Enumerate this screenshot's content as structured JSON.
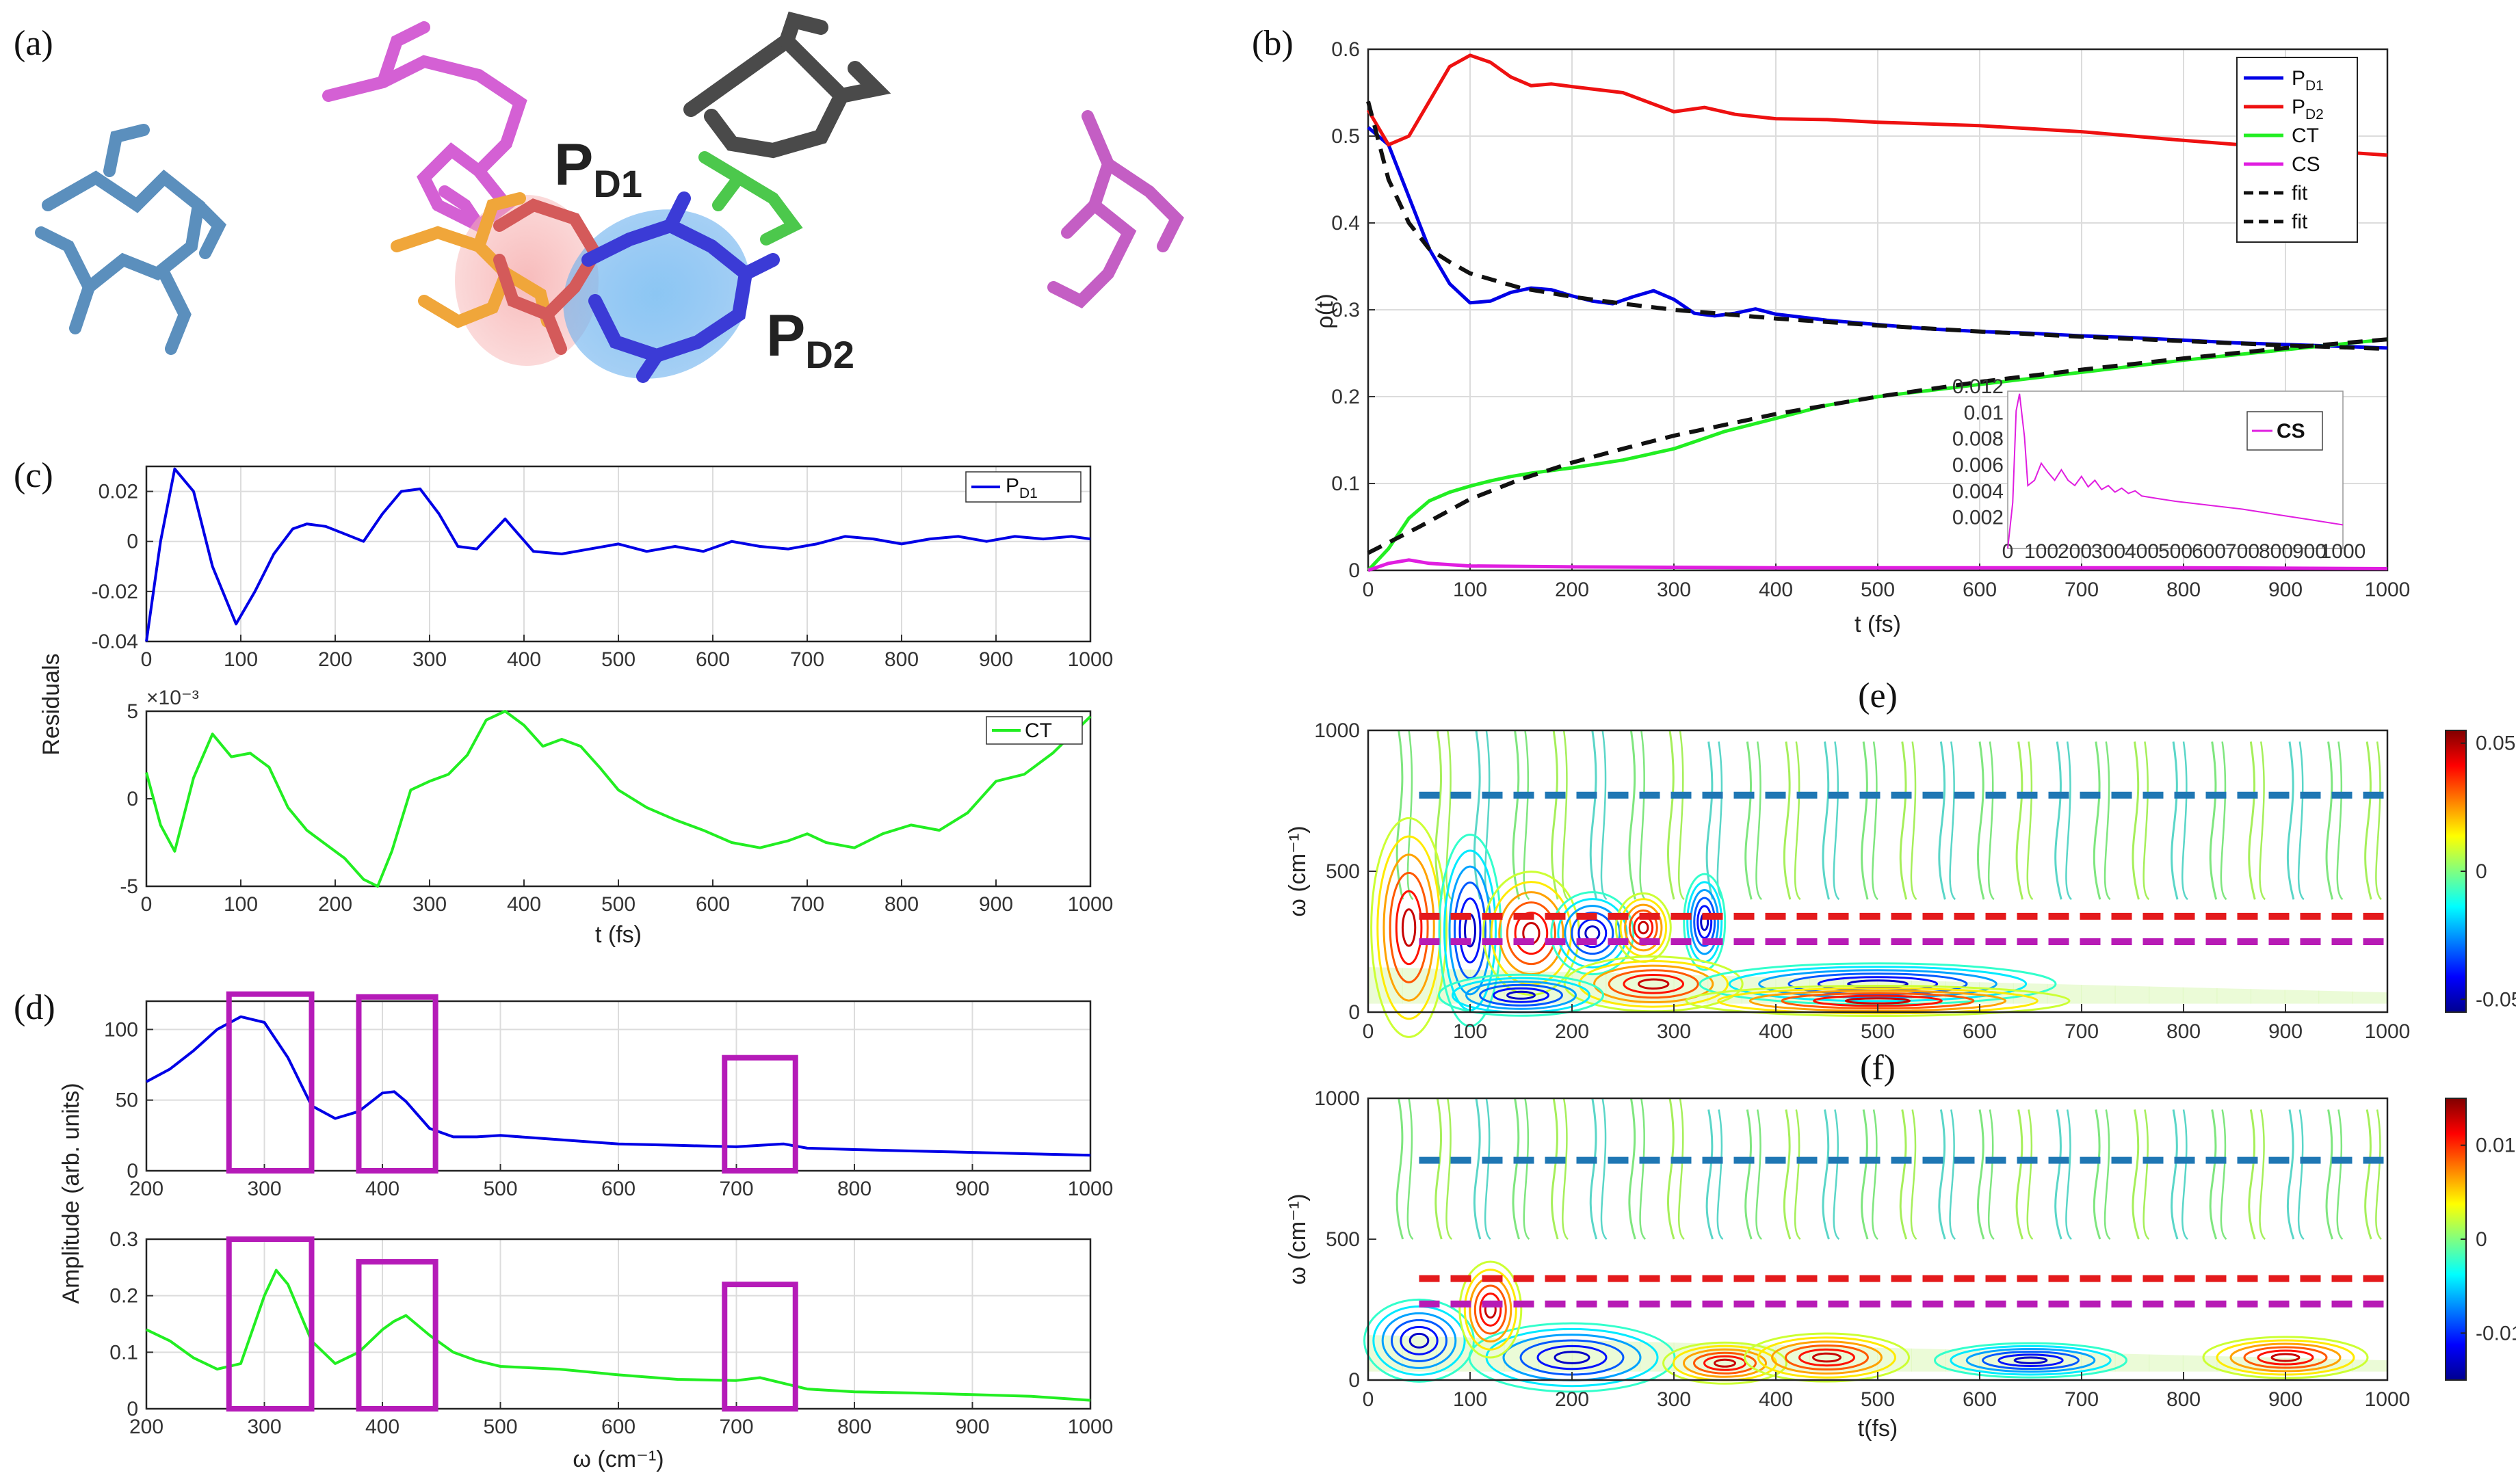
{
  "panels": {
    "a": {
      "label": "(a)",
      "molecule_labels": {
        "pd1_main": "P",
        "pd1_sub": "D1",
        "pd2_main": "P",
        "pd2_sub": "D2"
      }
    },
    "b": {
      "label": "(b)"
    },
    "c": {
      "label": "(c)",
      "shared_ylabel": "Residuals"
    },
    "d": {
      "label": "(d)",
      "shared_ylabel": "Amplitude (arb. units)"
    },
    "e": {
      "label": "(e)"
    },
    "f": {
      "label": "(f)"
    }
  },
  "colors": {
    "pd1": "#0000e6",
    "pd2": "#ee1111",
    "ct": "#22ee22",
    "cs": "#e01ee0",
    "fit": "#111111",
    "box": "#b51bb8",
    "dash_blue": "#1f77b4",
    "dash_red": "#e41a1c",
    "dash_purple": "#b71bb5"
  },
  "chart_data": [
    {
      "id": "b",
      "type": "line",
      "xlabel": "t (fs)",
      "ylabel": "ρ(t)",
      "xlim": [
        0,
        1000
      ],
      "ylim": [
        0,
        0.6
      ],
      "xticks": [
        "0",
        "100",
        "200",
        "300",
        "400",
        "500",
        "600",
        "700",
        "800",
        "900",
        "1000"
      ],
      "yticks": [
        "0",
        "0.1",
        "0.2",
        "0.3",
        "0.4",
        "0.5",
        "0.6"
      ],
      "legend": [
        "P_D1",
        "P_D2",
        "CT",
        "CS",
        "fit",
        "fit"
      ],
      "series": [
        {
          "name": "P_D1",
          "x": [
            0,
            20,
            40,
            60,
            80,
            100,
            120,
            140,
            160,
            180,
            200,
            220,
            240,
            260,
            280,
            300,
            320,
            340,
            360,
            380,
            400,
            450,
            500,
            550,
            600,
            650,
            700,
            750,
            800,
            850,
            900,
            950,
            1000
          ],
          "values": [
            0.51,
            0.49,
            0.43,
            0.37,
            0.33,
            0.308,
            0.31,
            0.32,
            0.325,
            0.323,
            0.316,
            0.31,
            0.307,
            0.315,
            0.322,
            0.312,
            0.296,
            0.293,
            0.296,
            0.301,
            0.295,
            0.288,
            0.283,
            0.278,
            0.275,
            0.273,
            0.27,
            0.268,
            0.265,
            0.262,
            0.26,
            0.258,
            0.256
          ]
        },
        {
          "name": "P_D2",
          "x": [
            0,
            20,
            40,
            60,
            80,
            100,
            120,
            140,
            160,
            180,
            200,
            250,
            300,
            330,
            360,
            400,
            450,
            500,
            600,
            700,
            800,
            900,
            1000
          ],
          "values": [
            0.53,
            0.49,
            0.5,
            0.54,
            0.58,
            0.593,
            0.585,
            0.568,
            0.558,
            0.56,
            0.557,
            0.55,
            0.528,
            0.533,
            0.525,
            0.52,
            0.519,
            0.516,
            0.512,
            0.505,
            0.495,
            0.486,
            0.478
          ]
        },
        {
          "name": "CT",
          "x": [
            0,
            20,
            40,
            60,
            80,
            100,
            120,
            140,
            160,
            180,
            200,
            250,
            300,
            350,
            400,
            450,
            500,
            550,
            600,
            650,
            700,
            750,
            800,
            850,
            900,
            950,
            1000
          ],
          "values": [
            0,
            0.025,
            0.06,
            0.08,
            0.09,
            0.097,
            0.103,
            0.108,
            0.112,
            0.115,
            0.118,
            0.127,
            0.14,
            0.16,
            0.175,
            0.19,
            0.2,
            0.207,
            0.214,
            0.221,
            0.228,
            0.235,
            0.242,
            0.248,
            0.254,
            0.26,
            0.266
          ]
        },
        {
          "name": "CS",
          "x": [
            0,
            20,
            40,
            60,
            100,
            200,
            400,
            600,
            800,
            1000
          ],
          "values": [
            0,
            0.008,
            0.012,
            0.008,
            0.005,
            0.004,
            0.003,
            0.003,
            0.003,
            0.002
          ]
        },
        {
          "name": "fit",
          "x": [
            0,
            20,
            40,
            60,
            80,
            100,
            150,
            200,
            250,
            300,
            400,
            500,
            600,
            700,
            800,
            900,
            1000
          ],
          "values": [
            0.54,
            0.45,
            0.4,
            0.37,
            0.355,
            0.342,
            0.325,
            0.315,
            0.307,
            0.3,
            0.29,
            0.282,
            0.275,
            0.269,
            0.264,
            0.259,
            0.255
          ]
        },
        {
          "name": "fit",
          "x": [
            0,
            50,
            100,
            150,
            200,
            250,
            300,
            400,
            500,
            600,
            700,
            800,
            900,
            1000
          ],
          "values": [
            0.02,
            0.05,
            0.082,
            0.105,
            0.124,
            0.14,
            0.155,
            0.18,
            0.2,
            0.217,
            0.231,
            0.244,
            0.256,
            0.266
          ]
        }
      ],
      "inset": {
        "legend": "CS",
        "xticks": [
          "0",
          "100",
          "200",
          "300",
          "400",
          "500",
          "600",
          "700",
          "800",
          "900",
          "1000"
        ],
        "yticks": [
          "0.002",
          "0.004",
          "0.006",
          "0.008",
          "0.01",
          "0.012"
        ],
        "x": [
          0,
          15,
          25,
          35,
          50,
          60,
          80,
          100,
          120,
          140,
          160,
          180,
          200,
          220,
          240,
          260,
          280,
          300,
          320,
          340,
          360,
          380,
          400,
          450,
          500,
          600,
          700,
          800,
          900,
          1000
        ],
        "values": [
          0,
          0.0035,
          0.0105,
          0.0118,
          0.0085,
          0.0048,
          0.0052,
          0.0065,
          0.0058,
          0.0052,
          0.006,
          0.0052,
          0.0048,
          0.0055,
          0.0047,
          0.0052,
          0.0045,
          0.0048,
          0.0043,
          0.0046,
          0.0042,
          0.0044,
          0.004,
          0.0038,
          0.0036,
          0.0033,
          0.003,
          0.0026,
          0.0022,
          0.0018
        ]
      }
    },
    {
      "id": "c1",
      "type": "line",
      "xlim": [
        0,
        1000
      ],
      "ylim": [
        -0.04,
        0.03
      ],
      "xticks": [
        "0",
        "100",
        "200",
        "300",
        "400",
        "500",
        "600",
        "700",
        "800",
        "900",
        "1000"
      ],
      "yticks": [
        "-0.04",
        "-0.02",
        "0",
        "0.02"
      ],
      "legend": [
        "P_D1"
      ],
      "series": [
        {
          "name": "P_D1",
          "x": [
            0,
            15,
            30,
            50,
            70,
            95,
            115,
            135,
            155,
            170,
            190,
            210,
            230,
            250,
            270,
            290,
            310,
            330,
            350,
            380,
            410,
            440,
            470,
            500,
            530,
            560,
            590,
            620,
            650,
            680,
            710,
            740,
            770,
            800,
            830,
            860,
            890,
            920,
            950,
            980,
            1000
          ],
          "values": [
            -0.04,
            0.0,
            0.029,
            0.02,
            -0.01,
            -0.033,
            -0.02,
            -0.005,
            0.005,
            0.007,
            0.006,
            0.003,
            0.0,
            0.011,
            0.02,
            0.021,
            0.011,
            -0.002,
            -0.003,
            0.009,
            -0.004,
            -0.005,
            -0.003,
            -0.001,
            -0.004,
            -0.002,
            -0.004,
            0.0,
            -0.002,
            -0.003,
            -0.001,
            0.002,
            0.001,
            -0.001,
            0.001,
            0.002,
            0.0,
            0.002,
            0.001,
            0.002,
            0.001
          ]
        }
      ]
    },
    {
      "id": "c2",
      "type": "line",
      "xlabel": "t (fs)",
      "xlim": [
        0,
        1000
      ],
      "ylim": [
        -5,
        5
      ],
      "multiplier": "×10⁻³",
      "xticks": [
        "0",
        "100",
        "200",
        "300",
        "400",
        "500",
        "600",
        "700",
        "800",
        "900",
        "1000"
      ],
      "yticks": [
        "-5",
        "0",
        "5"
      ],
      "legend": [
        "CT"
      ],
      "series": [
        {
          "name": "CT",
          "x": [
            0,
            15,
            30,
            50,
            70,
            90,
            110,
            130,
            150,
            170,
            190,
            210,
            230,
            245,
            260,
            280,
            300,
            320,
            340,
            360,
            380,
            400,
            420,
            440,
            460,
            480,
            500,
            530,
            560,
            590,
            620,
            650,
            680,
            700,
            720,
            750,
            780,
            810,
            840,
            870,
            900,
            930,
            960,
            1000
          ],
          "values": [
            1.5,
            -1.5,
            -3.0,
            1.2,
            3.7,
            2.4,
            2.6,
            1.8,
            -0.5,
            -1.8,
            -2.6,
            -3.4,
            -4.6,
            -5.0,
            -3.0,
            0.5,
            1.0,
            1.4,
            2.5,
            4.5,
            5.0,
            4.2,
            3.0,
            3.4,
            3.0,
            1.8,
            0.5,
            -0.5,
            -1.2,
            -1.8,
            -2.5,
            -2.8,
            -2.4,
            -2.0,
            -2.5,
            -2.8,
            -2.0,
            -1.5,
            -1.8,
            -0.8,
            1.0,
            1.4,
            2.6,
            4.7
          ]
        }
      ]
    },
    {
      "id": "d1",
      "type": "line",
      "xlim": [
        200,
        1000
      ],
      "ylim": [
        0,
        120
      ],
      "xticks": [
        "200",
        "300",
        "400",
        "500",
        "600",
        "700",
        "800",
        "900",
        "1000"
      ],
      "yticks": [
        "0",
        "50",
        "100"
      ],
      "series": [
        {
          "name": "P_D1",
          "x": [
            200,
            220,
            240,
            260,
            280,
            300,
            320,
            340,
            360,
            380,
            400,
            410,
            420,
            440,
            460,
            480,
            500,
            550,
            600,
            650,
            700,
            720,
            740,
            760,
            800,
            850,
            900,
            950,
            1000
          ],
          "values": [
            63,
            72,
            85,
            100,
            109,
            105,
            80,
            46,
            37,
            42,
            55,
            56,
            49,
            30,
            24,
            24,
            25,
            22,
            19,
            18,
            17,
            18,
            19,
            16,
            15,
            14,
            13,
            12,
            11
          ]
        }
      ]
    },
    {
      "id": "d2",
      "type": "line",
      "xlabel": "ω (cm⁻¹)",
      "xlim": [
        200,
        1000
      ],
      "ylim": [
        0,
        0.3
      ],
      "xticks": [
        "200",
        "300",
        "400",
        "500",
        "600",
        "700",
        "800",
        "900",
        "1000"
      ],
      "yticks": [
        "0",
        "0.1",
        "0.2",
        "0.3"
      ],
      "series": [
        {
          "name": "CT",
          "x": [
            200,
            220,
            240,
            260,
            280,
            300,
            310,
            320,
            340,
            360,
            380,
            400,
            410,
            420,
            440,
            460,
            480,
            500,
            550,
            600,
            650,
            700,
            720,
            740,
            760,
            800,
            850,
            900,
            950,
            1000
          ],
          "values": [
            0.14,
            0.12,
            0.09,
            0.07,
            0.08,
            0.2,
            0.245,
            0.22,
            0.12,
            0.08,
            0.1,
            0.14,
            0.155,
            0.165,
            0.13,
            0.1,
            0.085,
            0.075,
            0.07,
            0.06,
            0.052,
            0.05,
            0.055,
            0.045,
            0.035,
            0.03,
            0.028,
            0.025,
            0.022,
            0.015
          ]
        }
      ],
      "highlight_boxes_x": [
        [
          270,
          340
        ],
        [
          380,
          445
        ],
        [
          690,
          750
        ]
      ]
    },
    {
      "id": "e",
      "type": "heatmap",
      "title": "(e)",
      "xlabel": "",
      "ylabel": "ω (cm⁻¹)",
      "xlim": [
        0,
        1000
      ],
      "ylim": [
        0,
        1000
      ],
      "xticks": [
        "0",
        "100",
        "200",
        "300",
        "400",
        "500",
        "600",
        "700",
        "800",
        "900",
        "1000"
      ],
      "yticks": [
        "0",
        "500",
        "1000"
      ],
      "colorbar": {
        "min": -0.055,
        "max": 0.055,
        "ticks": [
          "0.05",
          "0",
          "-0.05"
        ]
      },
      "dashed_lines_y": [
        {
          "y": 770,
          "color": "dash_blue"
        },
        {
          "y": 340,
          "color": "dash_red"
        },
        {
          "y": 250,
          "color": "dash_purple"
        }
      ]
    },
    {
      "id": "f",
      "type": "heatmap",
      "title": "(f)",
      "xlabel": "t(fs)",
      "ylabel": "ω (cm⁻¹)",
      "xlim": [
        0,
        1000
      ],
      "ylim": [
        0,
        1000
      ],
      "xticks": [
        "0",
        "100",
        "200",
        "300",
        "400",
        "500",
        "600",
        "700",
        "800",
        "900",
        "1000"
      ],
      "yticks": [
        "0",
        "500",
        "1000"
      ],
      "colorbar": {
        "min": -0.015,
        "max": 0.015,
        "ticks": [
          "0.01",
          "0",
          "-0.01"
        ]
      },
      "dashed_lines_y": [
        {
          "y": 780,
          "color": "dash_blue"
        },
        {
          "y": 360,
          "color": "dash_red"
        },
        {
          "y": 270,
          "color": "dash_purple"
        }
      ]
    }
  ]
}
